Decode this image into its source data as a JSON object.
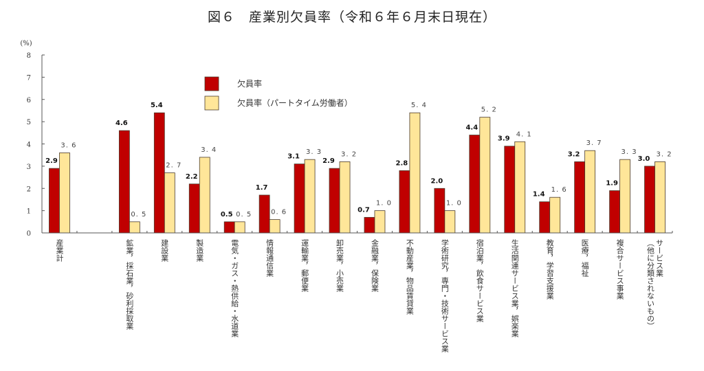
{
  "chart_data": {
    "type": "bar",
    "title": "図６　産業別欠員率（令和６年６月末日現在）",
    "ylabel": "(%)",
    "ylim": [
      0,
      8
    ],
    "yticks": [
      0,
      1,
      2,
      3,
      4,
      5,
      6,
      7,
      8
    ],
    "grid": false,
    "legend_position": "top-center",
    "categories": [
      [
        "産業計"
      ],
      [],
      [
        "鉱業，採石業，砂利採取業"
      ],
      [
        "建設業"
      ],
      [
        "製造業"
      ],
      [
        "電気・ガス・熱供給・水道業"
      ],
      [
        "情報通信業"
      ],
      [
        "運輸業，郵便業"
      ],
      [
        "卸売業，小売業"
      ],
      [
        "金融業，保険業"
      ],
      [
        "不動産業，物品賃貸業"
      ],
      [
        "学術研究，専門・技術サービス業"
      ],
      [
        "宿泊業，飲食サービス業"
      ],
      [
        "生活関連サービス業，娯楽業"
      ],
      [
        "教育，学習支援業"
      ],
      [
        "医療，福祉"
      ],
      [
        "複合サービス事業"
      ],
      [
        "サービス業",
        "（他に分類されないもの）"
      ]
    ],
    "series": [
      {
        "name": "欠員率",
        "color": "#c00000",
        "values": [
          2.9,
          null,
          4.6,
          5.4,
          2.2,
          0.5,
          1.7,
          3.1,
          2.9,
          0.7,
          2.8,
          2.0,
          4.4,
          3.9,
          1.4,
          3.2,
          1.9,
          3.0
        ],
        "labels": [
          "2.9",
          null,
          "4.6",
          "5.4",
          "2.2",
          "0.5",
          "1.7",
          "3.1",
          "2.9",
          "0.7",
          "2.8",
          "2.0",
          "4.4",
          "3.9",
          "1.4",
          "3.2",
          "1.9",
          "3.0"
        ]
      },
      {
        "name": "欠員率（パートタイム労働者）",
        "color": "#ffe699",
        "values": [
          3.6,
          null,
          0.5,
          2.7,
          3.4,
          0.5,
          0.6,
          3.3,
          3.2,
          1.0,
          5.4,
          1.0,
          5.2,
          4.1,
          1.6,
          3.7,
          3.3,
          3.2
        ],
        "labels": [
          "3. 6",
          null,
          "0. 5",
          "2. 7",
          "3. 4",
          "0. 5",
          "0. 6",
          "3. 3",
          "3. 2",
          "1. 0",
          "5. 4",
          "1. 0",
          "5. 2",
          "4. 1",
          "1. 6",
          "3. 7",
          "3. 3",
          "3. 2"
        ]
      }
    ]
  }
}
